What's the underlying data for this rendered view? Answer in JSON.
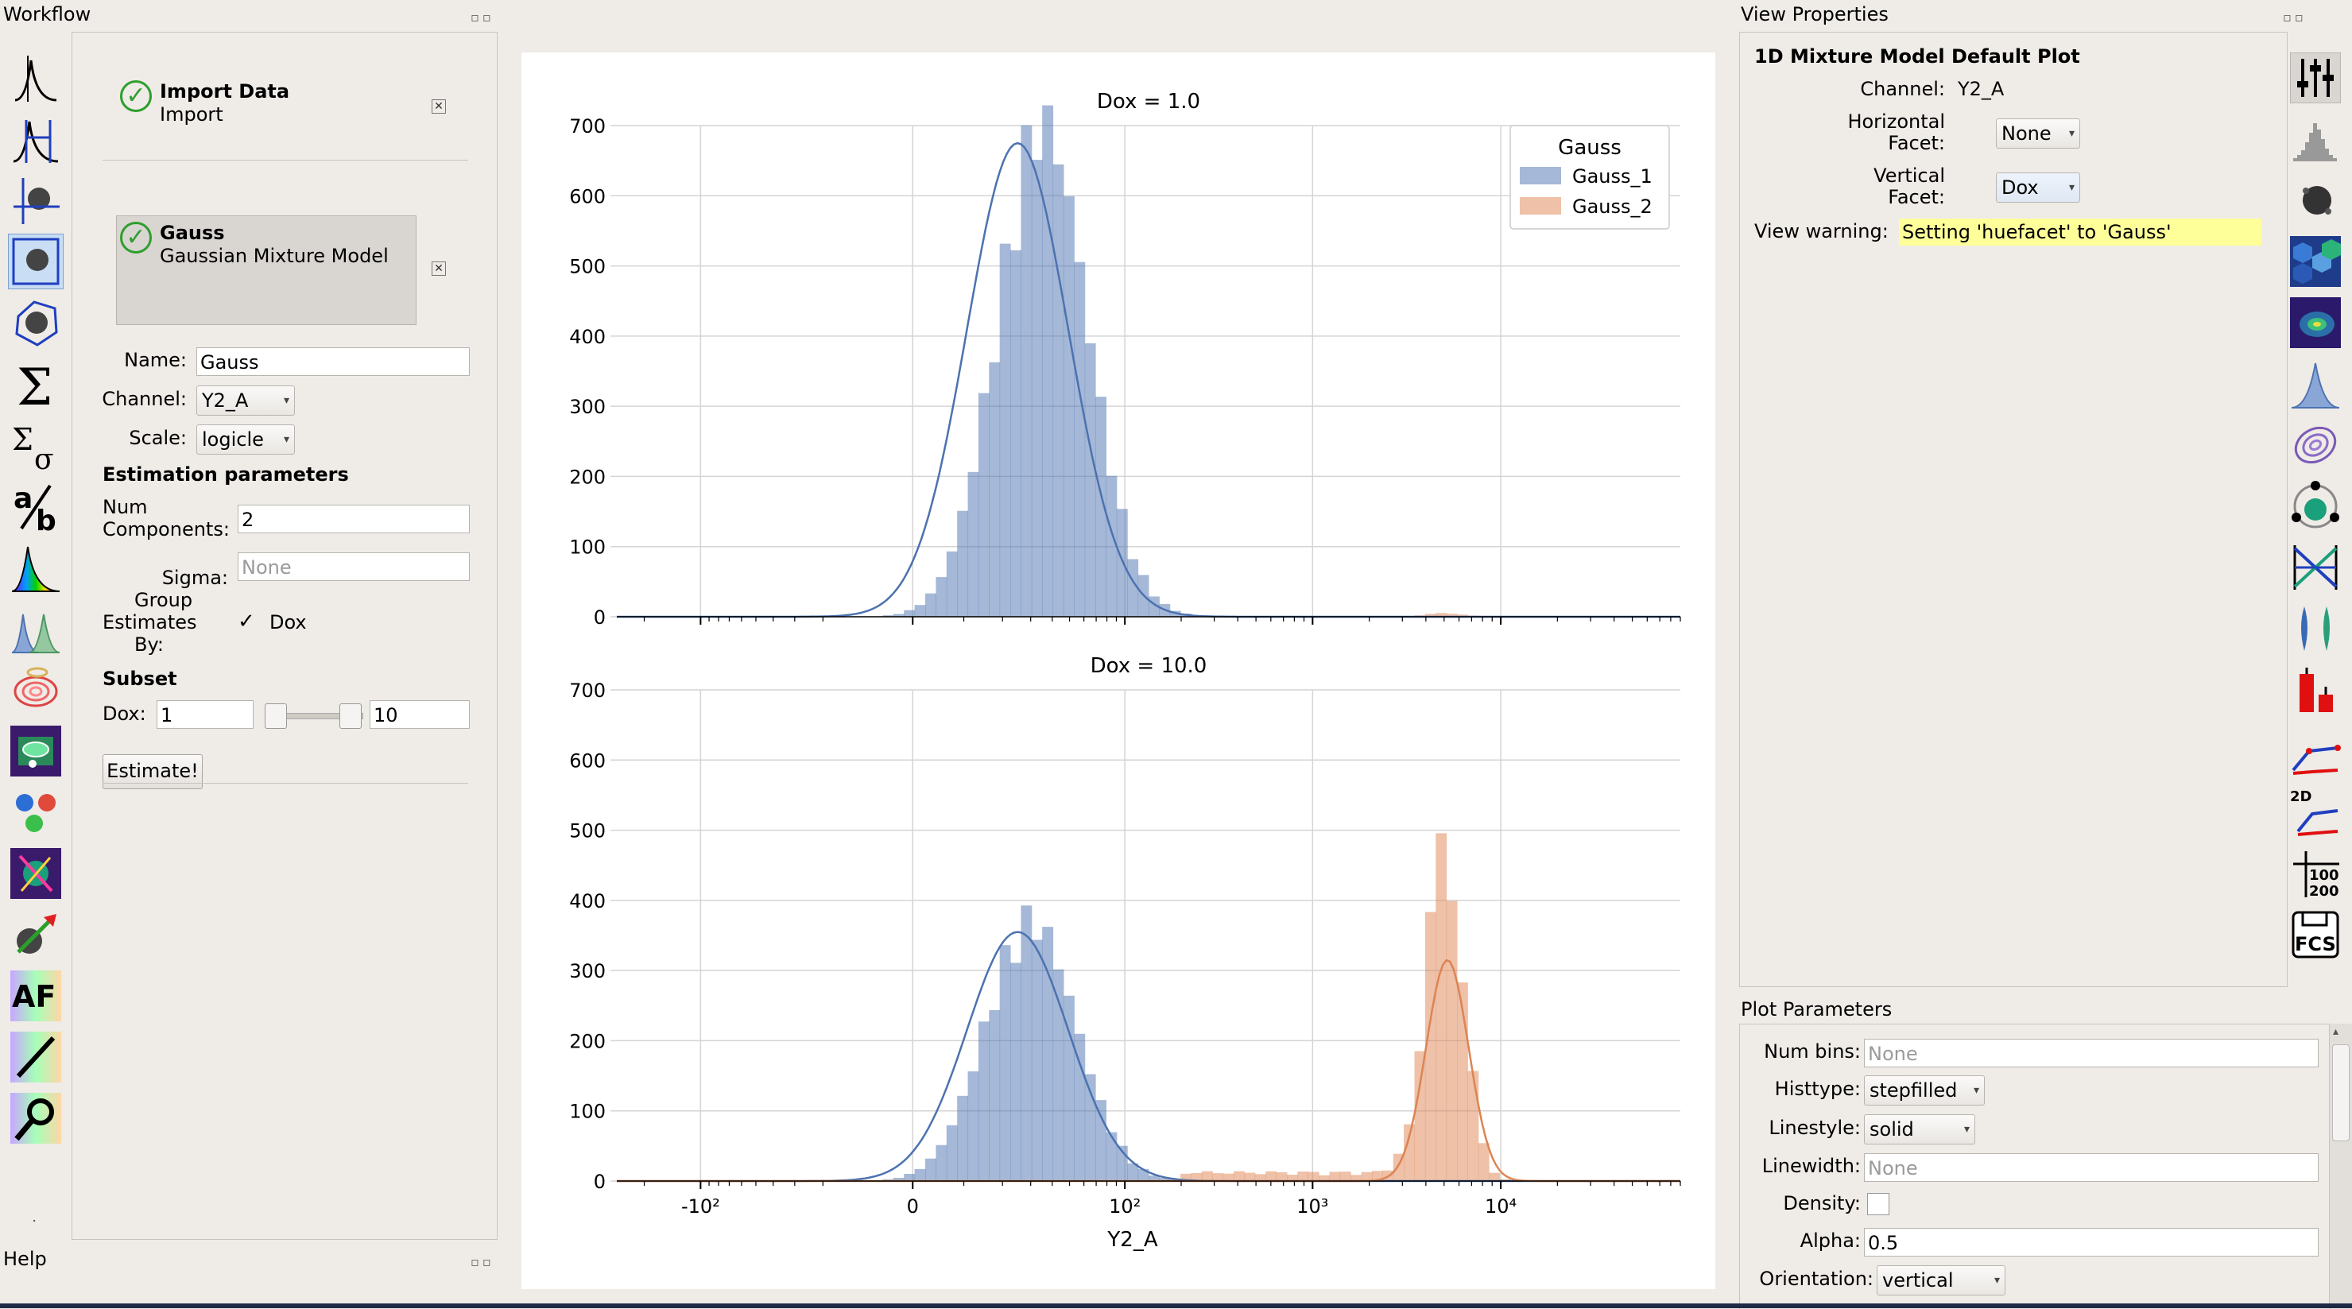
{
  "workflow": {
    "title": "Workflow",
    "ops": [
      {
        "title": "Import Data",
        "subtitle": "Import"
      },
      {
        "title": "Gauss",
        "subtitle": "Gaussian Mixture Model"
      }
    ],
    "form": {
      "name_label": "Name:",
      "name_value": "Gauss",
      "channel_label": "Channel:",
      "channel_value": "Y2_A",
      "scale_label": "Scale:",
      "scale_value": "logicle",
      "estimation_heading": "Estimation parameters",
      "num_components_label_1": "Num",
      "num_components_label_2": "Components:",
      "num_components_value": "2",
      "sigma_label": "Sigma:",
      "sigma_placeholder": "None",
      "group_label_1": "Group",
      "group_label_2": "Estimates",
      "group_label_3": "By:",
      "group_option": "Dox",
      "group_checked": true,
      "subset_heading": "Subset",
      "dox_label": "Dox:",
      "dox_min": "1",
      "dox_max": "10",
      "estimate_button": "Estimate!"
    }
  },
  "help": {
    "title": "Help"
  },
  "view_properties": {
    "title": "View Properties",
    "heading": "1D Mixture Model Default Plot",
    "channel_label": "Channel:",
    "channel_value": "Y2_A",
    "hfacet_label_1": "Horizontal",
    "hfacet_label_2": "Facet:",
    "hfacet_value": "None",
    "vfacet_label_1": "Vertical",
    "vfacet_label_2": "Facet:",
    "vfacet_value": "Dox",
    "warning_label": "View warning:",
    "warning_text": "Setting 'huefacet' to 'Gauss'"
  },
  "plot_parameters": {
    "title": "Plot Parameters",
    "num_bins_label": "Num bins:",
    "num_bins_placeholder": "None",
    "histtype_label": "Histtype:",
    "histtype_value": "stepfilled",
    "linestyle_label": "Linestyle:",
    "linestyle_value": "solid",
    "linewidth_label": "Linewidth:",
    "linewidth_placeholder": "None",
    "density_label": "Density:",
    "density_checked": false,
    "alpha_label": "Alpha:",
    "alpha_value": "0.5",
    "orientation_label": "Orientation:",
    "orientation_value": "vertical"
  },
  "tool_icons": [
    "import-icon",
    "threshold-icon",
    "range-icon",
    "polygon-2d-icon",
    "polygon-icon",
    "statistics-icon",
    "stats-sigma-icon",
    "ratio-icon",
    "spectrum-icon",
    "gaussian-icon",
    "density-icon",
    "cluster-icon",
    "color-cluster-icon",
    "pca-icon",
    "arrow-cluster-icon",
    "autofluorescence-icon",
    "bleedthrough-icon",
    "bead-calibration-icon"
  ],
  "view_icons": [
    "view-properties-icon",
    "histogram-icon",
    "scatterplot-icon",
    "hexbin-icon",
    "density-2d-icon",
    "kde-1d-icon",
    "kde-2d-icon",
    "radviz-icon",
    "parallel-coords-icon",
    "violin-icon",
    "bar-chart-icon",
    "stats-1d-icon",
    "stats-2d-icon",
    "table-icon",
    "export-fcs-icon"
  ],
  "chart_data": [
    {
      "type": "bar",
      "title": "Dox = 1.0",
      "xlabel": "",
      "ylabel": "",
      "xscale": "logicle",
      "x_ticks": [
        "-10²",
        "0",
        "10²",
        "10³",
        "10⁴"
      ],
      "ylim": [
        0,
        700
      ],
      "y_ticks": [
        0,
        100,
        200,
        300,
        400,
        500,
        600,
        700
      ],
      "grid": true,
      "legend": {
        "title": "Gauss",
        "entries": [
          "Gauss_1",
          "Gauss_2"
        ],
        "position": "top-right"
      },
      "series": [
        {
          "name": "Gauss_1",
          "color": "#4c72b0",
          "bins_peak_x": 35,
          "peak_count": 680,
          "fit_peak_x": 25,
          "fit_peak": 675
        },
        {
          "name": "Gauss_2",
          "color": "#dd8452",
          "bins_peak_x": 5000,
          "peak_count": 5,
          "fit_peak": 0
        }
      ]
    },
    {
      "type": "bar",
      "title": "Dox = 10.0",
      "xlabel": "Y2_A",
      "ylabel": "",
      "xscale": "logicle",
      "x_ticks": [
        "-10²",
        "0",
        "10²",
        "10³",
        "10⁴"
      ],
      "ylim": [
        0,
        700
      ],
      "y_ticks": [
        0,
        100,
        200,
        300,
        400,
        500,
        600,
        700
      ],
      "grid": true,
      "series": [
        {
          "name": "Gauss_1",
          "color": "#4c72b0",
          "bins_peak_x": 30,
          "peak_count": 360,
          "fit_peak_x": 25,
          "fit_peak": 355
        },
        {
          "name": "Gauss_2",
          "color": "#dd8452",
          "bins_peak_x": 5000,
          "peak_count": 465,
          "fit_peak_x": 5200,
          "fit_peak": 315
        }
      ]
    }
  ]
}
